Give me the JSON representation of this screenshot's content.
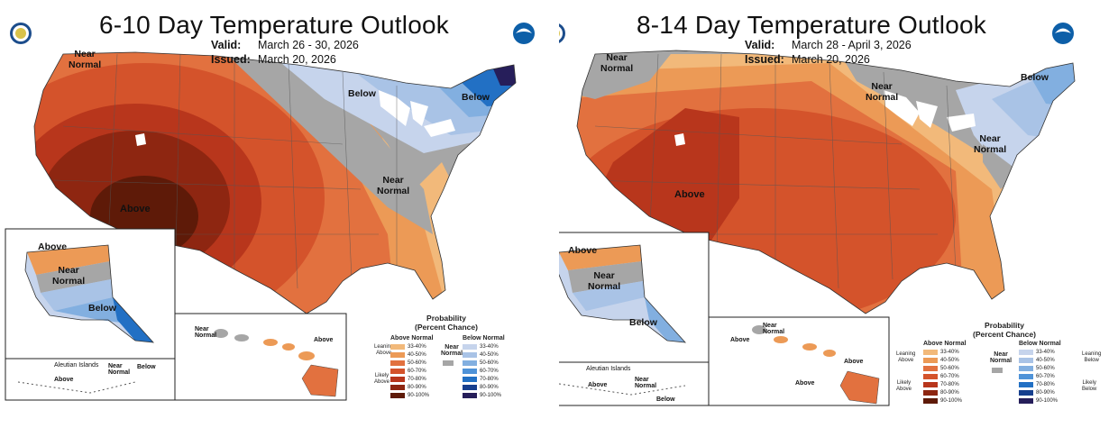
{
  "left": {
    "title": "6-10 Day Temperature Outlook",
    "valid_label": "Valid:",
    "valid_value": "March 26 - 30, 2026",
    "issued_label": "Issued:",
    "issued_value": "March 20, 2026",
    "labels": {
      "near_normal_nw": "Near\nNormal",
      "below_greatlakes": "Below",
      "below_ne": "Below",
      "near_normal_east": "Near\nNormal",
      "above_sw": "Above",
      "ak_above": "Above",
      "ak_near_normal": "Near\nNormal",
      "ak_below": "Below",
      "hi_near_normal": "Near\nNormal",
      "hi_above": "Above",
      "aleutian_title": "Aleutian Islands",
      "aleutian_near_normal": "Near\nNormal",
      "aleutian_below": "Below",
      "aleutian_above": "Above"
    }
  },
  "right": {
    "title": "8-14 Day Temperature Outlook",
    "valid_label": "Valid:",
    "valid_value": "March 28 - April 3, 2026",
    "issued_label": "Issued:",
    "issued_value": "March 20, 2026",
    "labels": {
      "near_normal_nw": "Near\nNormal",
      "near_normal_greatlakes": "Near\nNormal",
      "below_ne": "Below",
      "near_normal_east": "Near\nNormal",
      "above_sw": "Above",
      "ak_above": "Above",
      "ak_near_normal": "Near\nNormal",
      "ak_below": "Below",
      "hi_near_normal": "Near\nNormal",
      "hi_above_1": "Above",
      "hi_above_2": "Above",
      "hi_above_3": "Above",
      "aleutian_title": "Aleutian Islands",
      "aleutian_near_normal": "Near\nNormal",
      "aleutian_above": "Above",
      "aleutian_below": "Below"
    }
  },
  "legend": {
    "title": "Probability\n(Percent Chance)",
    "above_head": "Above Normal",
    "below_head": "Below Normal",
    "near_head": "Near\nNormal",
    "leaning_above": "Leaning\nAbove",
    "likely_above": "Likely\nAbove",
    "leaning_below": "Leaning\nBelow",
    "likely_below": "Likely\nBelow",
    "ranges": [
      "33-40%",
      "40-50%",
      "50-60%",
      "60-70%",
      "70-80%",
      "80-90%",
      "90-100%"
    ],
    "above_colors": [
      "#f2b97a",
      "#ec9a56",
      "#e2713f",
      "#d4532b",
      "#b8361c",
      "#8e2611",
      "#5e1a08"
    ],
    "below_colors": [
      "#c6d4ec",
      "#a9c3e6",
      "#82afe0",
      "#4f93d8",
      "#2270c4",
      "#163f8e",
      "#261e5a"
    ],
    "near_color": "#a6a6a6"
  },
  "colors": {
    "above_33": "#f2b97a",
    "above_40": "#ec9a56",
    "above_50": "#e2713f",
    "above_60": "#d4532b",
    "above_70": "#b8361c",
    "above_80": "#8e2611",
    "above_90": "#5e1a08",
    "below_33": "#c6d4ec",
    "below_40": "#a9c3e6",
    "below_50": "#82afe0",
    "below_60": "#4f93d8",
    "below_70": "#2270c4",
    "below_80": "#163f8e",
    "below_90": "#261e5a",
    "near": "#a6a6a6",
    "lake": "#ffffff",
    "border": "#555555"
  },
  "logos": {
    "left_icon": "doc-seal-icon",
    "right_icon": "noaa-logo-icon"
  }
}
